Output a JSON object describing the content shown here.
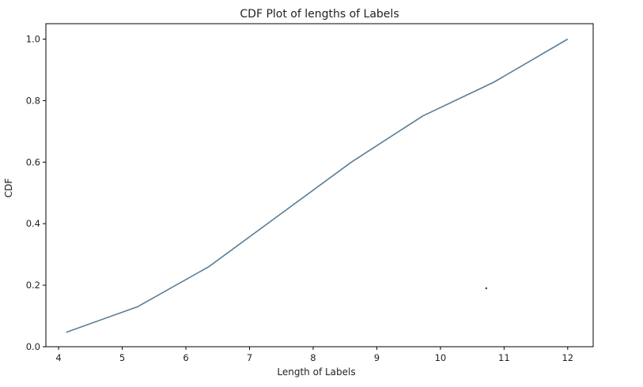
{
  "chart_data": {
    "type": "line",
    "title": "CDF Plot of lengths of Labels",
    "xlabel": "Length of Labels",
    "ylabel": "CDF",
    "xlim": [
      3.8,
      12.4
    ],
    "ylim": [
      0.0,
      1.05
    ],
    "x_ticks": [
      4,
      5,
      6,
      7,
      8,
      9,
      10,
      11,
      12
    ],
    "y_ticks": [
      0.0,
      0.2,
      0.4,
      0.6,
      0.8,
      1.0
    ],
    "x_tick_labels": [
      "4",
      "5",
      "6",
      "7",
      "8",
      "9",
      "10",
      "11",
      "12"
    ],
    "y_tick_labels": [
      "0.0",
      "0.2",
      "0.4",
      "0.6",
      "0.8",
      "1.0"
    ],
    "grid": false,
    "series": [
      {
        "color": "#5a7d96",
        "x": [
          4.12,
          5.24,
          6.36,
          7.48,
          8.6,
          9.72,
          10.84,
          12.0
        ],
        "y": [
          0.047,
          0.13,
          0.26,
          0.43,
          0.6,
          0.75,
          0.86,
          1.0
        ]
      }
    ],
    "annotations": [
      {
        "type": "dot",
        "x": 10.72,
        "y": 0.19
      }
    ]
  }
}
